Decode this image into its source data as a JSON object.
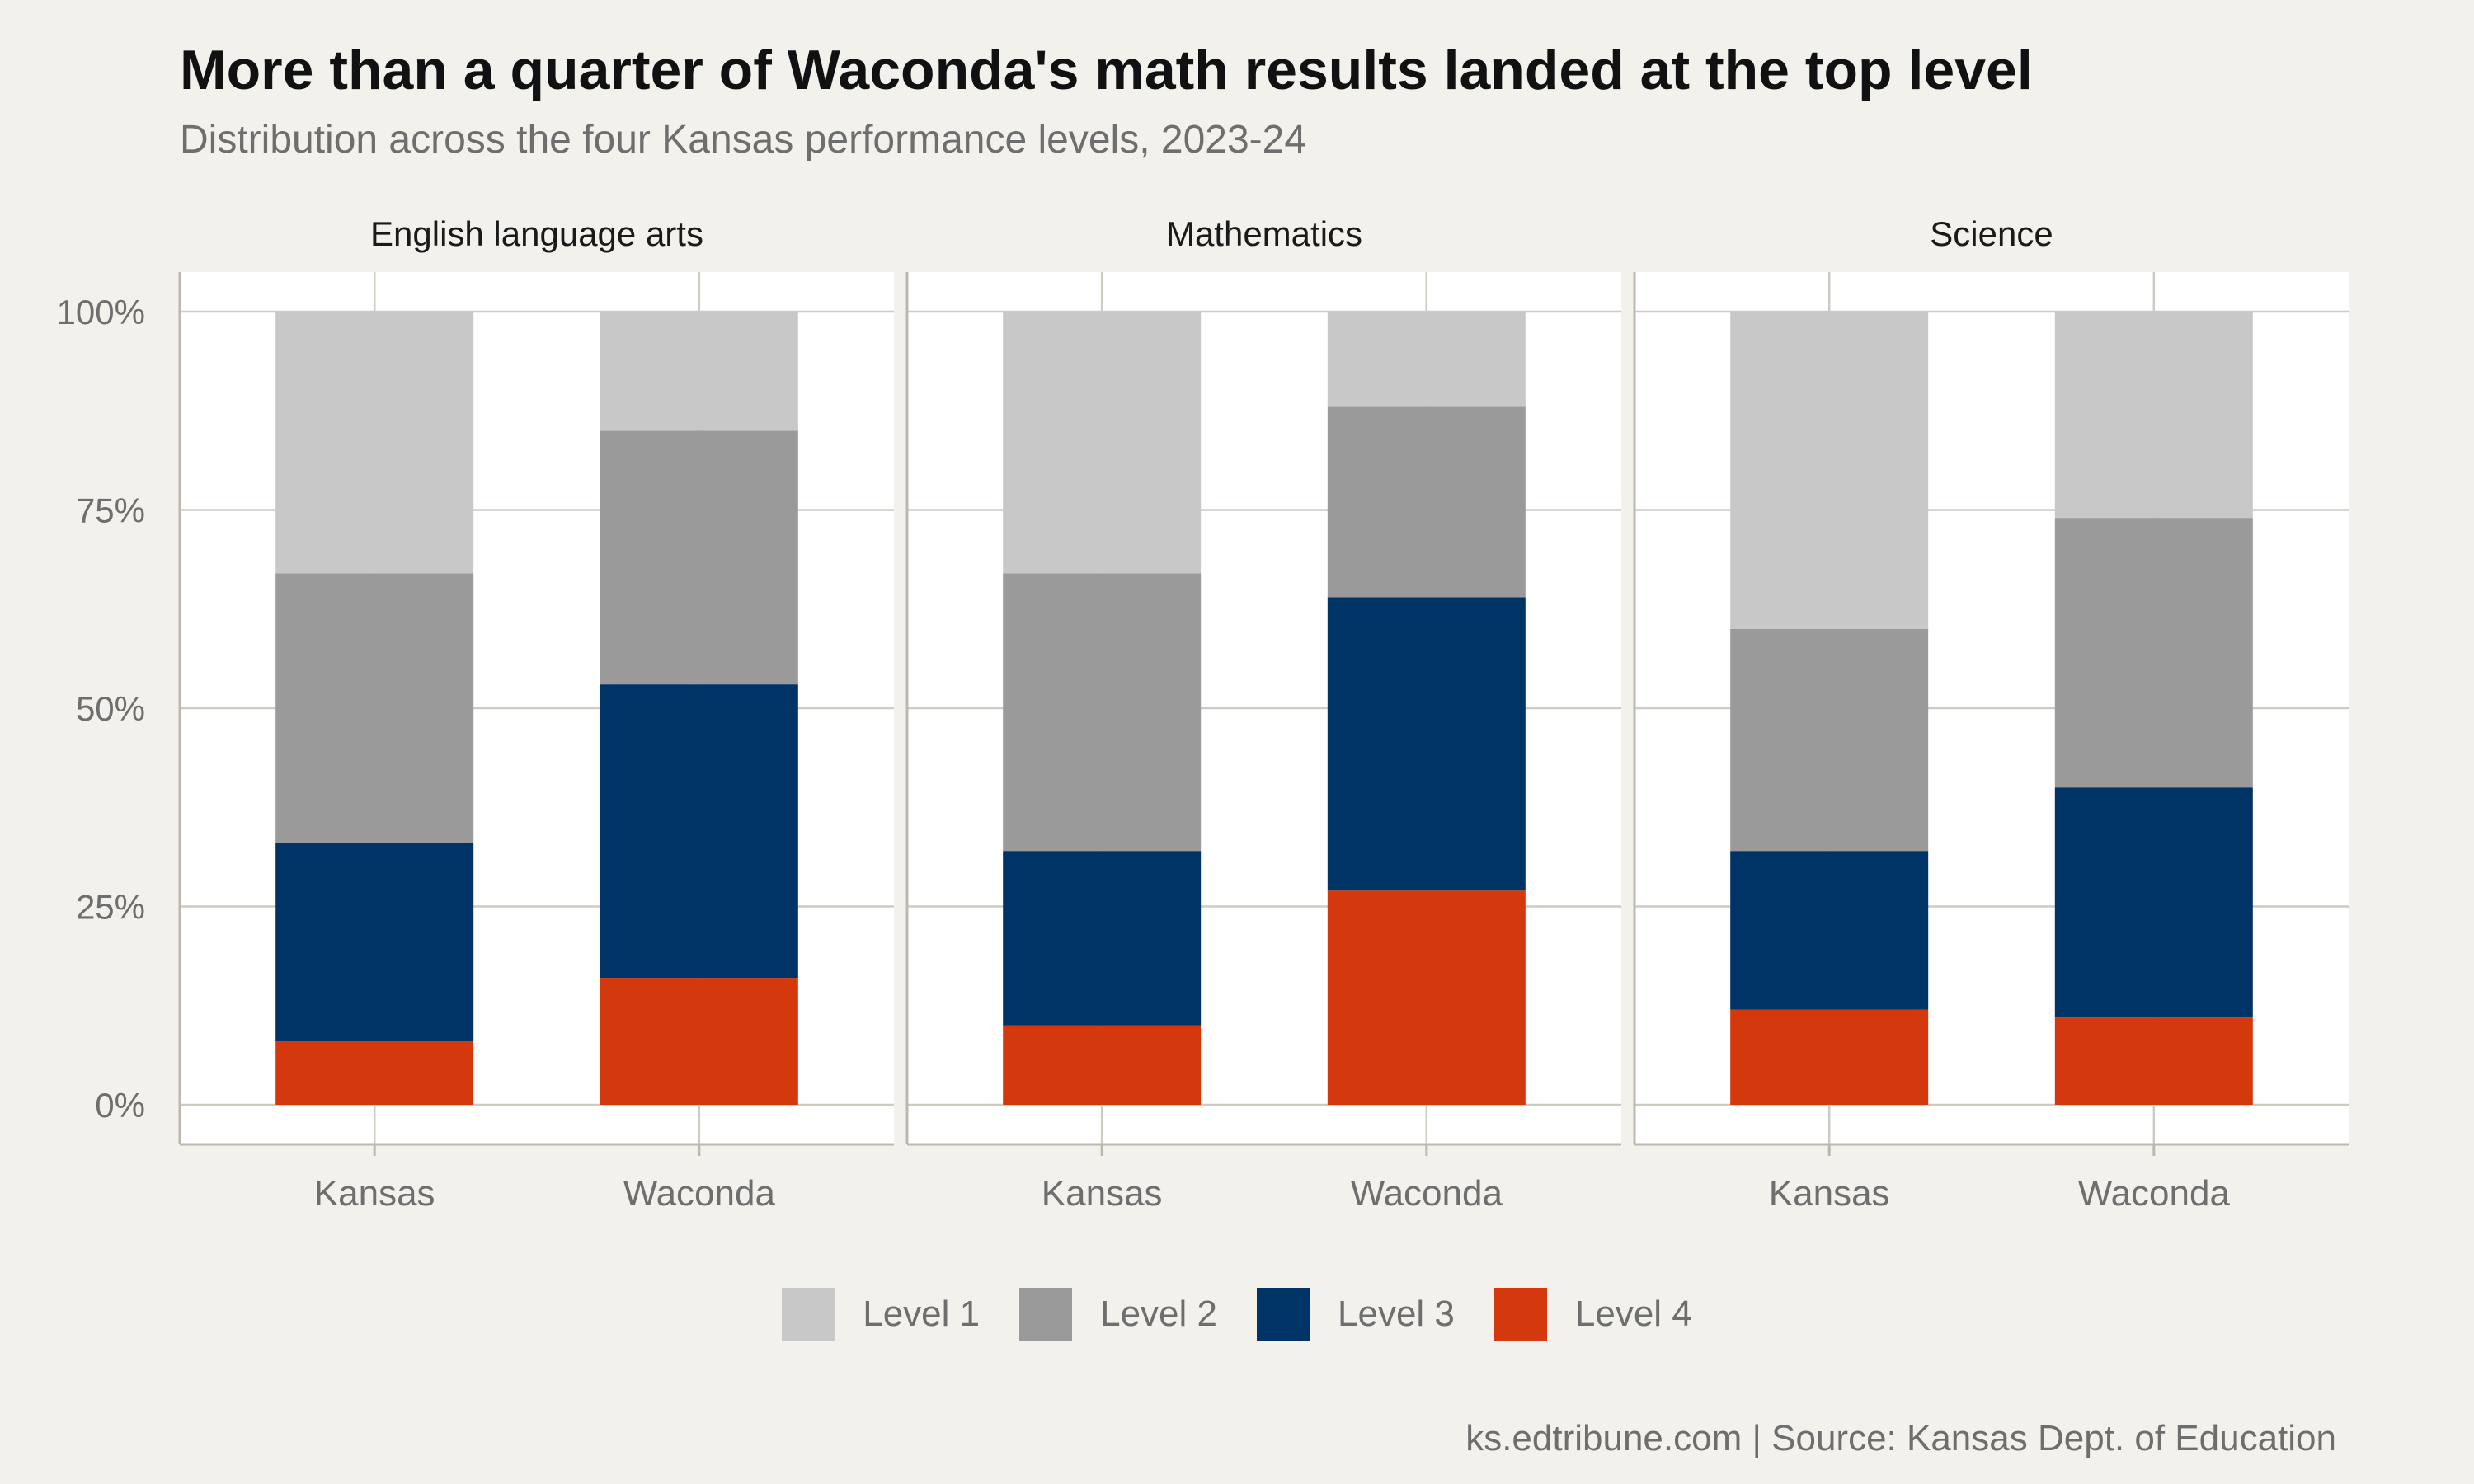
{
  "title": "More than a quarter of Waconda's math results landed at the top level",
  "subtitle": "Distribution across the four Kansas performance levels, 2023-24",
  "caption": "ks.edtribune.com | Source: Kansas Dept. of Education",
  "legend": [
    {
      "label": "Level 1",
      "color": "#c8c8c8"
    },
    {
      "label": "Level 2",
      "color": "#9a9a9a"
    },
    {
      "label": "Level 3",
      "color": "#003366"
    },
    {
      "label": "Level 4",
      "color": "#d4380d"
    }
  ],
  "chart_data": {
    "type": "bar",
    "stacked": true,
    "y_format": "percent",
    "ylim": [
      0,
      1
    ],
    "y_ticks": [
      "0%",
      "25%",
      "50%",
      "75%",
      "100%"
    ],
    "categories": [
      "Kansas",
      "Waconda"
    ],
    "series_order_bottom_to_top": [
      "Level 4",
      "Level 3",
      "Level 2",
      "Level 1"
    ],
    "grid": true,
    "legend_position": "bottom",
    "panels": [
      {
        "title": "English language arts",
        "series": [
          {
            "name": "Level 1",
            "values": [
              0.33,
              0.15
            ]
          },
          {
            "name": "Level 2",
            "values": [
              0.34,
              0.32
            ]
          },
          {
            "name": "Level 3",
            "values": [
              0.25,
              0.37
            ]
          },
          {
            "name": "Level 4",
            "values": [
              0.08,
              0.16
            ]
          }
        ]
      },
      {
        "title": "Mathematics",
        "series": [
          {
            "name": "Level 1",
            "values": [
              0.33,
              0.12
            ]
          },
          {
            "name": "Level 2",
            "values": [
              0.35,
              0.24
            ]
          },
          {
            "name": "Level 3",
            "values": [
              0.22,
              0.37
            ]
          },
          {
            "name": "Level 4",
            "values": [
              0.1,
              0.27
            ]
          }
        ]
      },
      {
        "title": "Science",
        "series": [
          {
            "name": "Level 1",
            "values": [
              0.4,
              0.26
            ]
          },
          {
            "name": "Level 2",
            "values": [
              0.28,
              0.34
            ]
          },
          {
            "name": "Level 3",
            "values": [
              0.2,
              0.29
            ]
          },
          {
            "name": "Level 4",
            "values": [
              0.12,
              0.11
            ]
          }
        ]
      }
    ]
  }
}
